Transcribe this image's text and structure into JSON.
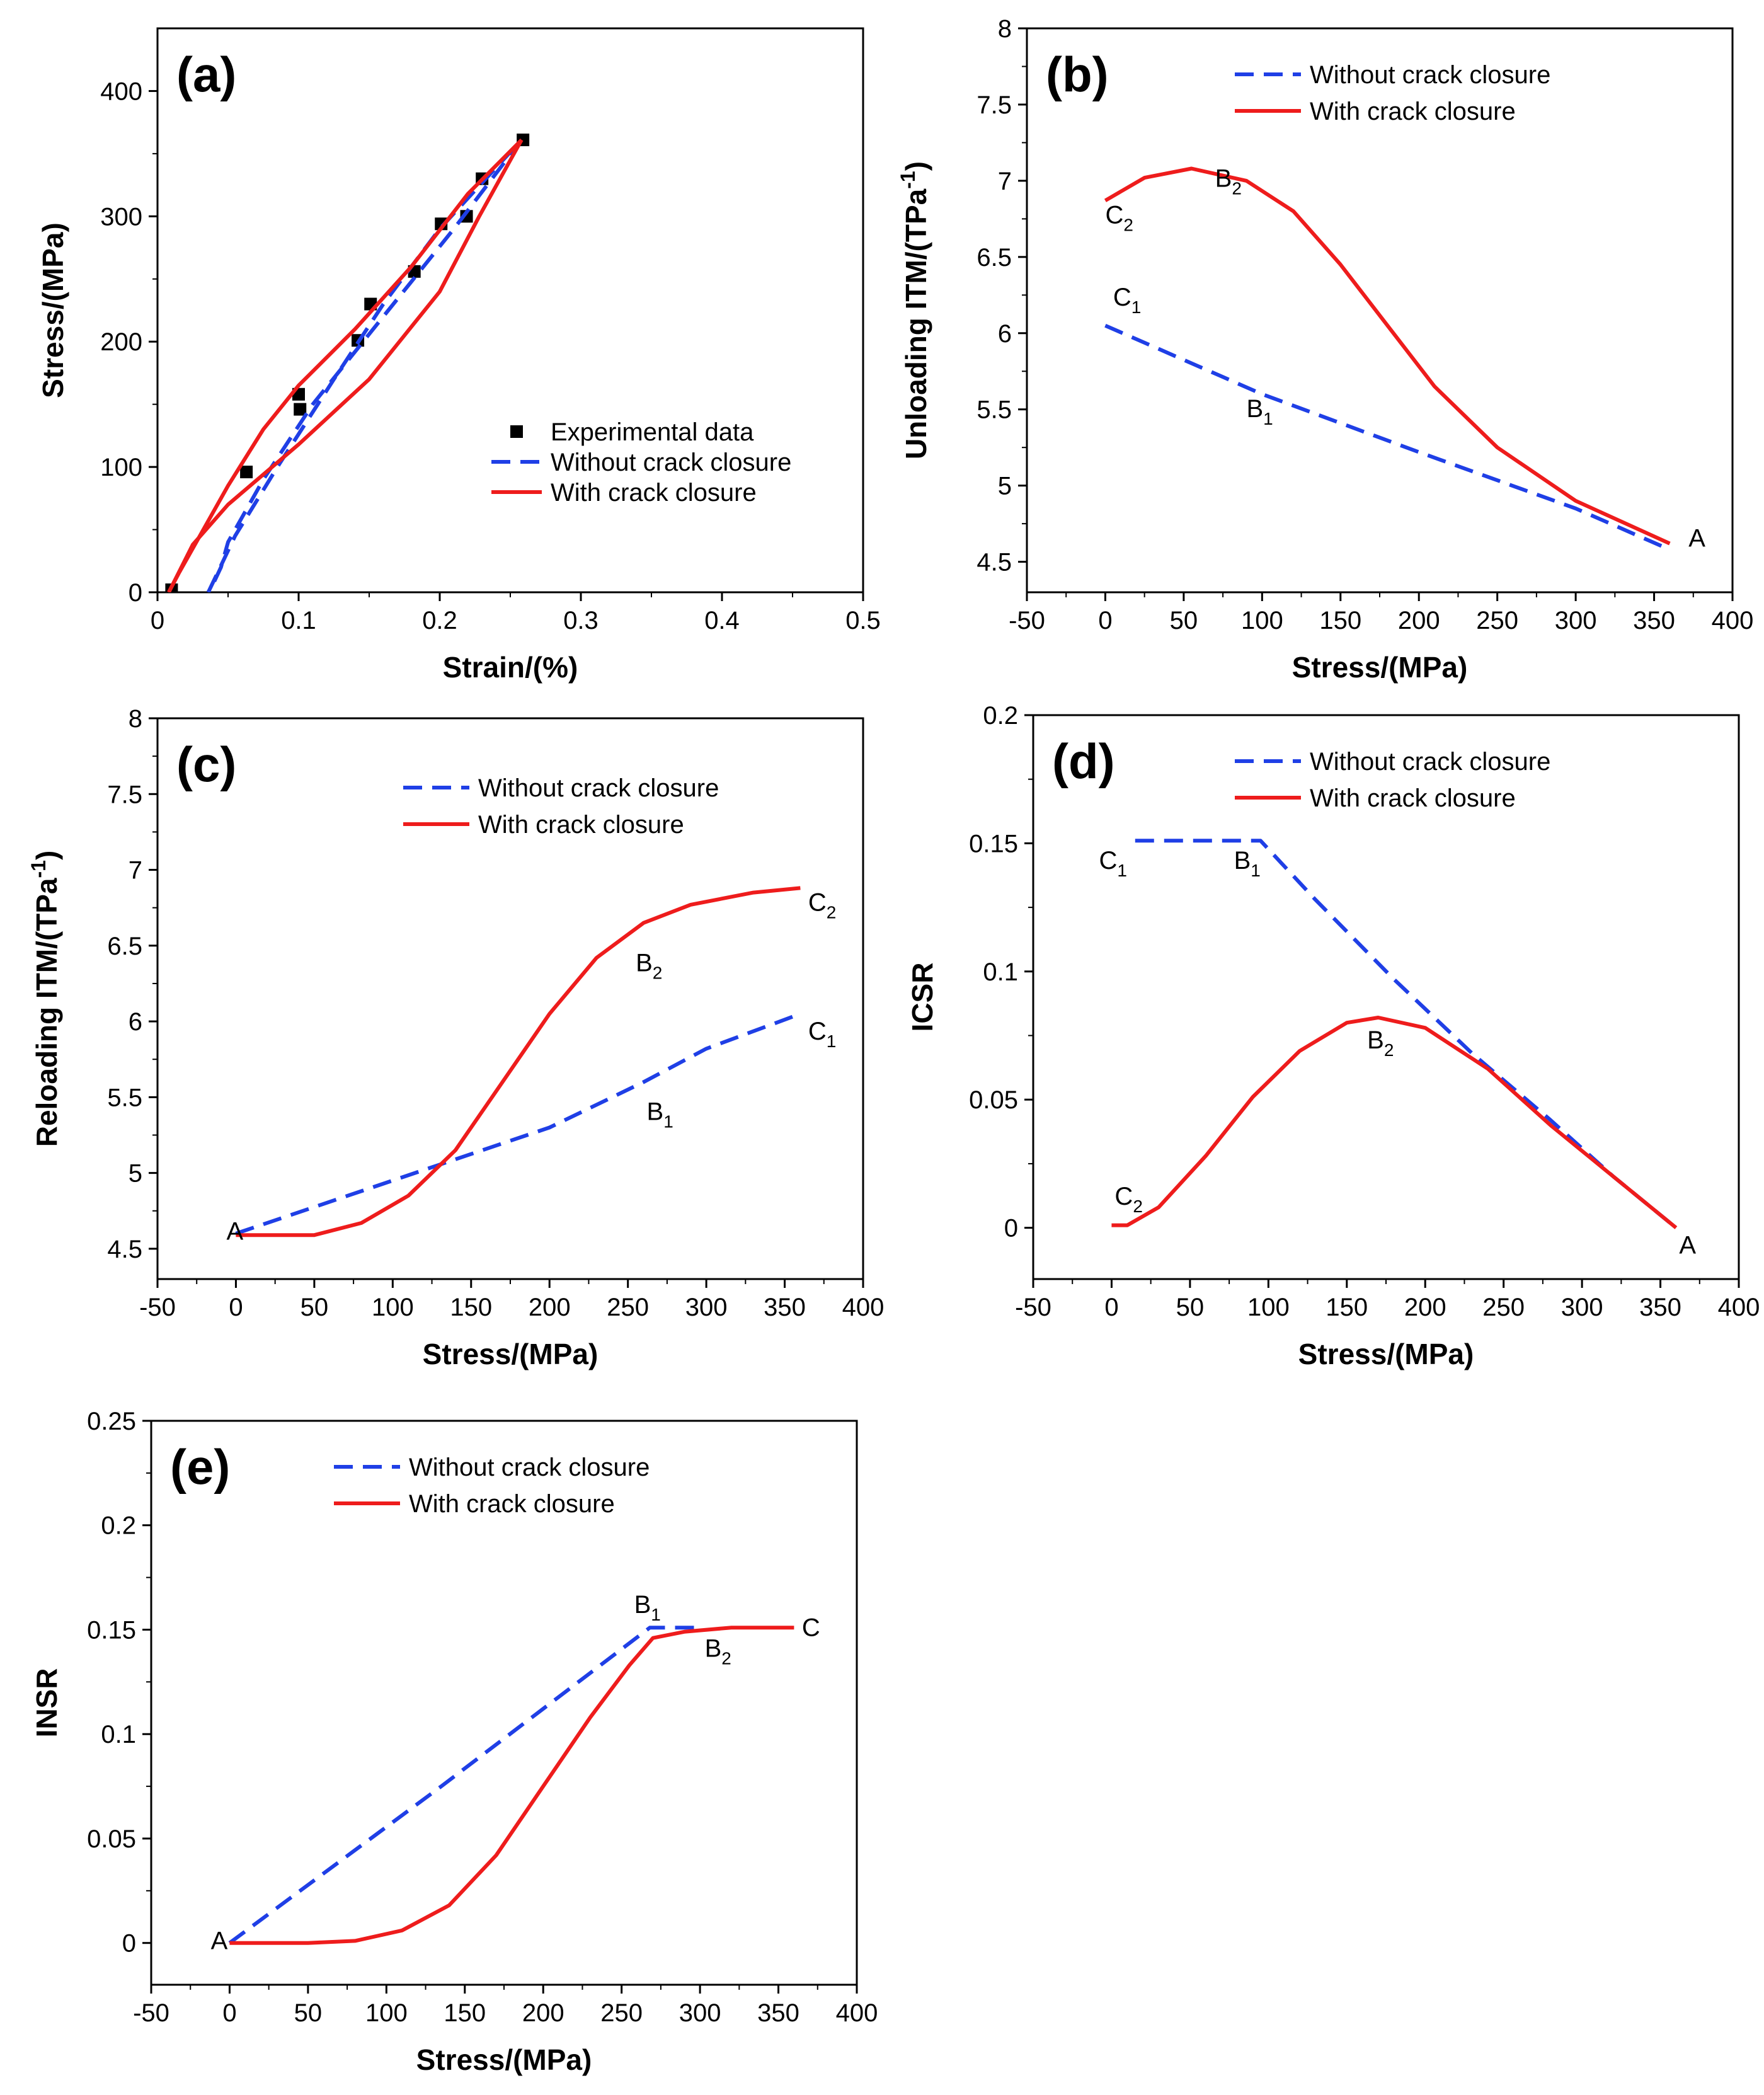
{
  "figure": {
    "colors": {
      "without": "#1f3fe6",
      "with": "#ee1c1c",
      "experimental": "#000000"
    }
  },
  "chart_data": [
    {
      "id": "a",
      "panel_label": "(a)",
      "type": "line",
      "xlabel": "Strain/(%)",
      "ylabel": "Stress/(MPa)",
      "xlim": [
        0,
        0.5
      ],
      "ylim": [
        0,
        450
      ],
      "xticks": [
        0,
        0.1,
        0.2,
        0.3,
        0.4,
        0.5
      ],
      "xtick_labels": [
        "0",
        "0.1",
        "0.2",
        "0.3",
        "0.4",
        "0.5"
      ],
      "yticks": [
        0,
        100,
        200,
        300,
        400
      ],
      "ytick_labels": [
        "0",
        "100",
        "200",
        "300",
        "400"
      ],
      "legend": {
        "position": "center-right",
        "entries": [
          {
            "label": "Experimental data",
            "style": "marker",
            "color": "#000000"
          },
          {
            "label": "Without crack closure",
            "style": "dashed",
            "color": "#1f3fe6"
          },
          {
            "label": "With crack closure",
            "style": "solid",
            "color": "#ee1c1c"
          }
        ]
      },
      "series": [
        {
          "name": "Experimental data",
          "style": "marker",
          "color": "#000000",
          "points": [
            [
              0.01,
              2
            ],
            [
              0.063,
              96
            ],
            [
              0.1,
              158
            ],
            [
              0.101,
              146
            ],
            [
              0.142,
              201
            ],
            [
              0.151,
              230
            ],
            [
              0.182,
              256
            ],
            [
              0.201,
              294
            ],
            [
              0.219,
              300
            ],
            [
              0.23,
              330
            ],
            [
              0.259,
              361
            ]
          ]
        },
        {
          "name": "Without crack closure (unloading)",
          "style": "dashed",
          "color": "#1f3fe6",
          "points": [
            [
              0.258,
              361
            ],
            [
              0.21,
              290
            ],
            [
              0.16,
              220
            ],
            [
              0.11,
              150
            ],
            [
              0.075,
              90
            ],
            [
              0.06,
              60
            ],
            [
              0.05,
              40
            ],
            [
              0.045,
              20
            ],
            [
              0.04,
              8
            ],
            [
              0.036,
              0
            ]
          ]
        },
        {
          "name": "Without crack closure (reloading)",
          "style": "dashed",
          "color": "#1f3fe6",
          "points": [
            [
              0.036,
              0
            ],
            [
              0.055,
              45
            ],
            [
              0.085,
              100
            ],
            [
              0.125,
              170
            ],
            [
              0.16,
              230
            ],
            [
              0.2,
              290
            ],
            [
              0.258,
              361
            ]
          ]
        },
        {
          "name": "With crack closure (unloading)",
          "style": "solid",
          "color": "#ee1c1c",
          "points": [
            [
              0.258,
              361
            ],
            [
              0.22,
              318
            ],
            [
              0.18,
              260
            ],
            [
              0.14,
              210
            ],
            [
              0.1,
              165
            ],
            [
              0.075,
              130
            ],
            [
              0.05,
              85
            ],
            [
              0.03,
              45
            ],
            [
              0.015,
              15
            ],
            [
              0.008,
              0
            ]
          ]
        },
        {
          "name": "With crack closure (reloading)",
          "style": "solid",
          "color": "#ee1c1c",
          "points": [
            [
              0.008,
              0
            ],
            [
              0.025,
              38
            ],
            [
              0.05,
              70
            ],
            [
              0.1,
              118
            ],
            [
              0.15,
              170
            ],
            [
              0.2,
              240
            ],
            [
              0.228,
              300
            ],
            [
              0.258,
              361
            ]
          ]
        }
      ],
      "annotations": []
    },
    {
      "id": "b",
      "panel_label": "(b)",
      "type": "line",
      "xlabel": "Stress/(MPa)",
      "ylabel": "Unloading ITM/(TPa",
      "ylabel_sup": "-1",
      "ylabel_end": ")",
      "xlim": [
        -50,
        400
      ],
      "ylim": [
        4.3,
        8
      ],
      "xticks": [
        -50,
        0,
        50,
        100,
        150,
        200,
        250,
        300,
        350,
        400
      ],
      "xtick_labels": [
        "-50",
        "0",
        "50",
        "100",
        "150",
        "200",
        "250",
        "300",
        "350",
        "400"
      ],
      "yticks": [
        4.5,
        5,
        5.5,
        6,
        6.5,
        7,
        7.5,
        8
      ],
      "ytick_labels": [
        "4.5",
        "5",
        "5.5",
        "6",
        "6.5",
        "7",
        "7.5",
        "8"
      ],
      "legend": {
        "position": "top-right",
        "entries": [
          {
            "label": "Without crack closure",
            "style": "dashed",
            "color": "#1f3fe6"
          },
          {
            "label": "With crack closure",
            "style": "solid",
            "color": "#ee1c1c"
          }
        ]
      },
      "series": [
        {
          "name": "Without crack closure",
          "style": "dashed",
          "color": "#1f3fe6",
          "points": [
            [
              0,
              6.05
            ],
            [
              100,
              5.6
            ],
            [
              200,
              5.22
            ],
            [
              300,
              4.85
            ],
            [
              360,
              4.58
            ]
          ]
        },
        {
          "name": "With crack closure",
          "style": "solid",
          "color": "#ee1c1c",
          "points": [
            [
              0,
              6.87
            ],
            [
              25,
              7.02
            ],
            [
              55,
              7.08
            ],
            [
              90,
              7.0
            ],
            [
              120,
              6.8
            ],
            [
              150,
              6.45
            ],
            [
              180,
              6.05
            ],
            [
              210,
              5.65
            ],
            [
              250,
              5.25
            ],
            [
              300,
              4.9
            ],
            [
              360,
              4.62
            ]
          ]
        }
      ],
      "annotations": [
        {
          "text": "C",
          "sub": "2",
          "x": 0,
          "y": 6.72
        },
        {
          "text": "B",
          "sub": "2",
          "x": 70,
          "y": 6.96
        },
        {
          "text": "C",
          "sub": "1",
          "x": 5,
          "y": 6.18
        },
        {
          "text": "B",
          "sub": "1",
          "x": 90,
          "y": 5.45
        },
        {
          "text": "A",
          "x": 372,
          "y": 4.6
        }
      ]
    },
    {
      "id": "c",
      "panel_label": "(c)",
      "type": "line",
      "xlabel": "Stress/(MPa)",
      "ylabel": "Reloading ITM/(TPa",
      "ylabel_sup": "-1",
      "ylabel_end": ")",
      "xlim": [
        -50,
        400
      ],
      "ylim": [
        4.3,
        8
      ],
      "xticks": [
        -50,
        0,
        50,
        100,
        150,
        200,
        250,
        300,
        350,
        400
      ],
      "xtick_labels": [
        "-50",
        "0",
        "50",
        "100",
        "150",
        "200",
        "250",
        "300",
        "350",
        "400"
      ],
      "yticks": [
        4.5,
        5,
        5.5,
        6,
        6.5,
        7,
        7.5,
        8
      ],
      "ytick_labels": [
        "4.5",
        "5",
        "5.5",
        "6",
        "6.5",
        "7",
        "7.5",
        "8"
      ],
      "legend": {
        "position": "top-right",
        "entries": [
          {
            "label": "Without crack closure",
            "style": "dashed",
            "color": "#1f3fe6"
          },
          {
            "label": "With crack closure",
            "style": "solid",
            "color": "#ee1c1c"
          }
        ]
      },
      "series": [
        {
          "name": "Without crack closure",
          "style": "dashed",
          "color": "#1f3fe6",
          "points": [
            [
              0,
              4.6
            ],
            [
              100,
              4.95
            ],
            [
              200,
              5.3
            ],
            [
              260,
              5.6
            ],
            [
              300,
              5.82
            ],
            [
              360,
              6.05
            ]
          ]
        },
        {
          "name": "With crack closure",
          "style": "solid",
          "color": "#ee1c1c",
          "points": [
            [
              0,
              4.59
            ],
            [
              50,
              4.59
            ],
            [
              80,
              4.67
            ],
            [
              110,
              4.85
            ],
            [
              140,
              5.15
            ],
            [
              170,
              5.6
            ],
            [
              200,
              6.05
            ],
            [
              230,
              6.42
            ],
            [
              260,
              6.65
            ],
            [
              290,
              6.77
            ],
            [
              330,
              6.85
            ],
            [
              360,
              6.88
            ]
          ]
        }
      ],
      "annotations": [
        {
          "text": "A",
          "x": -6,
          "y": 4.56
        },
        {
          "text": "B",
          "sub": "2",
          "x": 255,
          "y": 6.33
        },
        {
          "text": "C",
          "sub": "2",
          "x": 365,
          "y": 6.73
        },
        {
          "text": "C",
          "sub": "1",
          "x": 365,
          "y": 5.88
        },
        {
          "text": "B",
          "sub": "1",
          "x": 262,
          "y": 5.35
        }
      ]
    },
    {
      "id": "d",
      "panel_label": "(d)",
      "type": "line",
      "xlabel": "Stress/(MPa)",
      "ylabel": "ICSR",
      "xlim": [
        -50,
        400
      ],
      "ylim": [
        -0.02,
        0.2
      ],
      "xticks": [
        -50,
        0,
        50,
        100,
        150,
        200,
        250,
        300,
        350,
        400
      ],
      "xtick_labels": [
        "-50",
        "0",
        "50",
        "100",
        "150",
        "200",
        "250",
        "300",
        "350",
        "400"
      ],
      "yticks": [
        0,
        0.05,
        0.1,
        0.15,
        0.2
      ],
      "ytick_labels": [
        "0",
        "0.05",
        "0.1",
        "0.15",
        "0.2"
      ],
      "legend": {
        "position": "top-right",
        "entries": [
          {
            "label": "Without crack closure",
            "style": "dashed",
            "color": "#1f3fe6"
          },
          {
            "label": "With crack closure",
            "style": "solid",
            "color": "#ee1c1c"
          }
        ]
      },
      "series": [
        {
          "name": "Without crack closure",
          "style": "dashed",
          "color": "#1f3fe6",
          "points": [
            [
              15,
              0.151
            ],
            [
              95,
              0.151
            ],
            [
              130,
              0.128
            ],
            [
              180,
              0.097
            ],
            [
              230,
              0.068
            ],
            [
              280,
              0.042
            ],
            [
              320,
              0.02
            ],
            [
              360,
              0.0
            ]
          ]
        },
        {
          "name": "With crack closure",
          "style": "solid",
          "color": "#ee1c1c",
          "points": [
            [
              0,
              0.001
            ],
            [
              10,
              0.001
            ],
            [
              30,
              0.008
            ],
            [
              60,
              0.028
            ],
            [
              90,
              0.051
            ],
            [
              120,
              0.069
            ],
            [
              150,
              0.08
            ],
            [
              170,
              0.082
            ],
            [
              200,
              0.078
            ],
            [
              240,
              0.062
            ],
            [
              280,
              0.04
            ],
            [
              320,
              0.02
            ],
            [
              360,
              0.0
            ]
          ]
        }
      ],
      "annotations": [
        {
          "text": "C",
          "sub": "1",
          "x": -8,
          "y": 0.14
        },
        {
          "text": "B",
          "sub": "1",
          "x": 78,
          "y": 0.14
        },
        {
          "text": "B",
          "sub": "2",
          "x": 163,
          "y": 0.07
        },
        {
          "text": "C",
          "sub": "2",
          "x": 2,
          "y": 0.009
        },
        {
          "text": "A",
          "x": 362,
          "y": -0.01
        }
      ]
    },
    {
      "id": "e",
      "panel_label": "(e)",
      "type": "line",
      "xlabel": "Stress/(MPa)",
      "ylabel": "INSR",
      "xlim": [
        -50,
        400
      ],
      "ylim": [
        -0.02,
        0.25
      ],
      "xticks": [
        -50,
        0,
        50,
        100,
        150,
        200,
        250,
        300,
        350,
        400
      ],
      "xtick_labels": [
        "-50",
        "0",
        "50",
        "100",
        "150",
        "200",
        "250",
        "300",
        "350",
        "400"
      ],
      "yticks": [
        0,
        0.05,
        0.1,
        0.15,
        0.2,
        0.25
      ],
      "ytick_labels": [
        "0",
        "0.05",
        "0.1",
        "0.15",
        "0.2",
        "0.25"
      ],
      "legend": {
        "position": "top-left",
        "entries": [
          {
            "label": "Without crack closure",
            "style": "dashed",
            "color": "#1f3fe6"
          },
          {
            "label": "With crack closure",
            "style": "solid",
            "color": "#ee1c1c"
          }
        ]
      },
      "series": [
        {
          "name": "Without crack closure",
          "style": "dashed",
          "color": "#1f3fe6",
          "points": [
            [
              0,
              0
            ],
            [
              135,
              0.075
            ],
            [
              268,
              0.151
            ],
            [
              300,
              0.151
            ]
          ]
        },
        {
          "name": "With crack closure",
          "style": "solid",
          "color": "#ee1c1c",
          "points": [
            [
              0,
              0
            ],
            [
              50,
              0
            ],
            [
              80,
              0.001
            ],
            [
              110,
              0.006
            ],
            [
              140,
              0.018
            ],
            [
              170,
              0.042
            ],
            [
              200,
              0.075
            ],
            [
              230,
              0.108
            ],
            [
              255,
              0.133
            ],
            [
              270,
              0.146
            ],
            [
              290,
              0.149
            ],
            [
              320,
              0.151
            ],
            [
              360,
              0.151
            ]
          ]
        }
      ],
      "annotations": [
        {
          "text": "A",
          "x": -12,
          "y": -0.003
        },
        {
          "text": "B",
          "sub": "1",
          "x": 258,
          "y": 0.158
        },
        {
          "text": "B",
          "sub": "2",
          "x": 303,
          "y": 0.137
        },
        {
          "text": "C",
          "x": 365,
          "y": 0.147
        }
      ]
    }
  ]
}
